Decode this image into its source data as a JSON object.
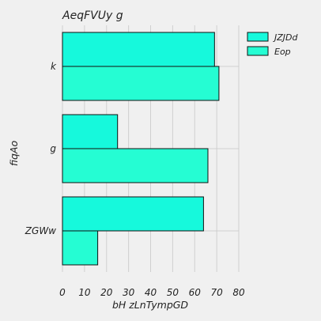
{
  "chart_data": {
    "type": "bar",
    "orientation": "horizontal",
    "title": "AeqFVUy g",
    "xlabel": "bH zLnTympGD",
    "ylabel": "fiqAo",
    "categories": [
      "k",
      "g",
      "ZGWw"
    ],
    "xlim": [
      0,
      80
    ],
    "xticks": [
      0,
      10,
      20,
      30,
      40,
      50,
      60,
      70,
      80
    ],
    "grid": true,
    "legend_position": "top-right",
    "series": [
      {
        "name": "JZJDd",
        "color": "#16f9dc",
        "values": [
          69,
          25,
          64
        ]
      },
      {
        "name": "Eop",
        "color": "#25fdd3",
        "values": [
          71,
          66,
          16
        ]
      }
    ]
  }
}
